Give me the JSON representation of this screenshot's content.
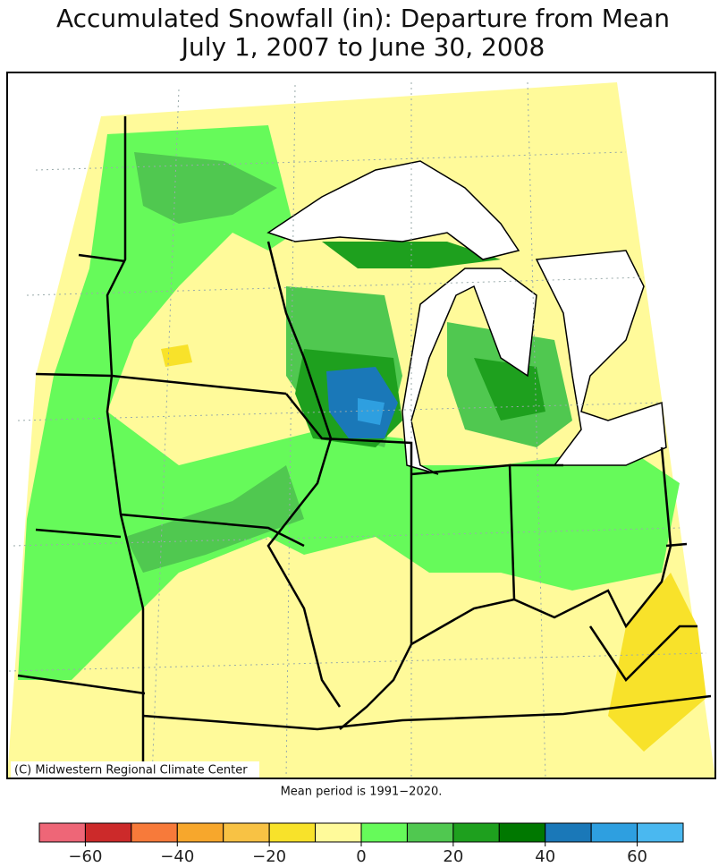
{
  "title": [
    "Accumulated Snowfall (in): Departure from Mean",
    "July 1, 2007 to June 30, 2008"
  ],
  "credit": "(C) Midwestern Regional Climate Center",
  "note": "Mean period is 1991−2020.",
  "colorbar": {
    "bounds": [
      -70,
      -60,
      -50,
      -40,
      -30,
      -20,
      -10,
      0,
      10,
      20,
      30,
      40,
      50,
      60,
      70
    ],
    "colors": [
      "#ee6677",
      "#cc2a2a",
      "#f77a3a",
      "#f7a72c",
      "#f8c244",
      "#f8e22a",
      "#fffa9a",
      "#66fa5a",
      "#50c850",
      "#1ea01e",
      "#007800",
      "#1a78b8",
      "#2e9fe0",
      "#4ab8f0"
    ],
    "ticks": [
      {
        "value": -60,
        "label": "−60"
      },
      {
        "value": -40,
        "label": "−40"
      },
      {
        "value": -20,
        "label": "−20"
      },
      0,
      20,
      40,
      60
    ]
  }
}
